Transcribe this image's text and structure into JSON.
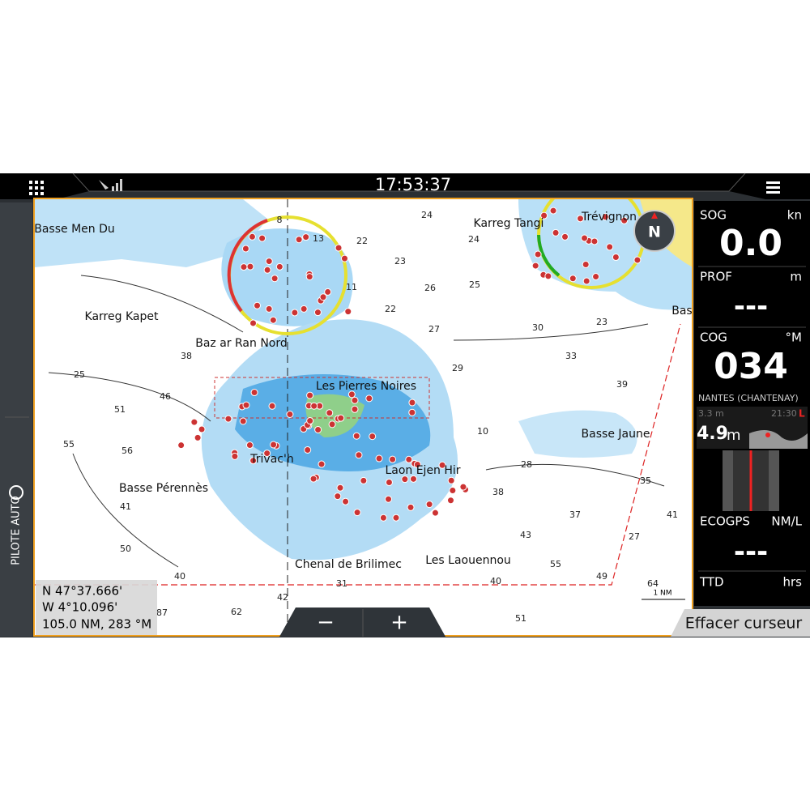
{
  "header": {
    "time": "17:53:37"
  },
  "sidebar": {
    "autopilot": "PILOTE AUTO"
  },
  "map": {
    "compass": "N",
    "places": [
      "Basse Men Du",
      "Karreg Tangi",
      "Trévignon",
      "Karreg Kapet",
      "Baz ar Ran Nord",
      "Les Pierres Noires",
      "Basse Jaune",
      "Trivac'h",
      "Laon Ejen Hir",
      "Basse Pérennès",
      "Chenal de Brilimec",
      "Les Laouennou",
      "Bas"
    ],
    "soundings": [
      "8",
      "13",
      "22",
      "24",
      "24",
      "23",
      "26",
      "25",
      "22",
      "27",
      "30",
      "23",
      "33",
      "29",
      "39",
      "11",
      "38",
      "25",
      "46",
      "51",
      "55",
      "56",
      "41",
      "50",
      "40",
      "42",
      "31",
      "40",
      "55",
      "43",
      "37",
      "38",
      "35",
      "41",
      "49",
      "64",
      "62",
      "87",
      "51",
      "27",
      "10",
      "28"
    ],
    "scale": "1 NM",
    "cursor": {
      "lat": "N  47°37.666'",
      "lon": "W   4°10.096'",
      "range": "105.0 NM, 283 °M"
    },
    "zoom_out": "−",
    "zoom_in": "+",
    "clear_cursor": "Effacer curseur"
  },
  "panel": {
    "sog": {
      "label": "SOG",
      "unit": "kn",
      "value": "0.0"
    },
    "depth": {
      "label": "PROF",
      "unit": "m",
      "value": "---"
    },
    "cog": {
      "label": "COG",
      "unit": "°M",
      "value": "034"
    },
    "tide": {
      "station": "NANTES (CHANTENAY)",
      "low": "3.3 m",
      "time": "21:30",
      "flag": "L",
      "height": "4.9",
      "height_unit": "m"
    },
    "eco": {
      "label": "ECOGPS",
      "unit": "NM/L",
      "value": "---"
    },
    "ttd": {
      "label": "TTD",
      "unit": "hrs"
    }
  }
}
